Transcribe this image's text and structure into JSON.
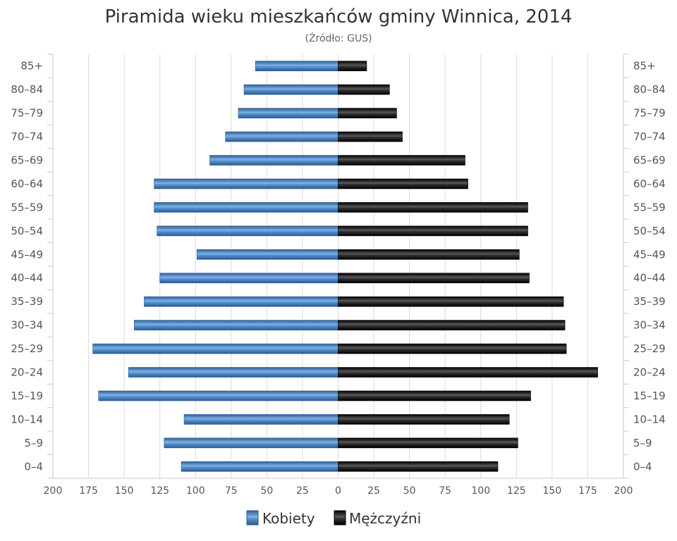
{
  "chart_data": {
    "type": "bar",
    "orientation": "horizontal-pyramid",
    "title": "Piramida wieku mieszkańców gminy Winnica, 2014",
    "subtitle": "(Źródło: GUS)",
    "categories": [
      "85+",
      "80–84",
      "75–79",
      "70–74",
      "65–69",
      "60–64",
      "55–59",
      "50–54",
      "45–49",
      "40–44",
      "35–39",
      "30–34",
      "25–29",
      "20–24",
      "15–19",
      "10–14",
      "5–9",
      "0–4"
    ],
    "series": [
      {
        "name": "Kobiety",
        "side": "left",
        "color": "#4a86c5",
        "values": [
          58,
          66,
          70,
          79,
          90,
          129,
          129,
          127,
          99,
          125,
          136,
          143,
          172,
          147,
          168,
          108,
          122,
          110
        ]
      },
      {
        "name": "Mężczyźni",
        "side": "right",
        "color": "#1a1a1a",
        "values": [
          20,
          36,
          41,
          45,
          89,
          91,
          133,
          133,
          127,
          134,
          158,
          159,
          160,
          182,
          135,
          120,
          126,
          112
        ]
      }
    ],
    "x_ticks": [
      "200",
      "175",
      "150",
      "125",
      "100",
      "75",
      "50",
      "25",
      "0",
      "25",
      "50",
      "75",
      "100",
      "125",
      "150",
      "175",
      "200"
    ],
    "xlim": [
      -200,
      200
    ],
    "grid": true,
    "legend": "bottom-center"
  }
}
